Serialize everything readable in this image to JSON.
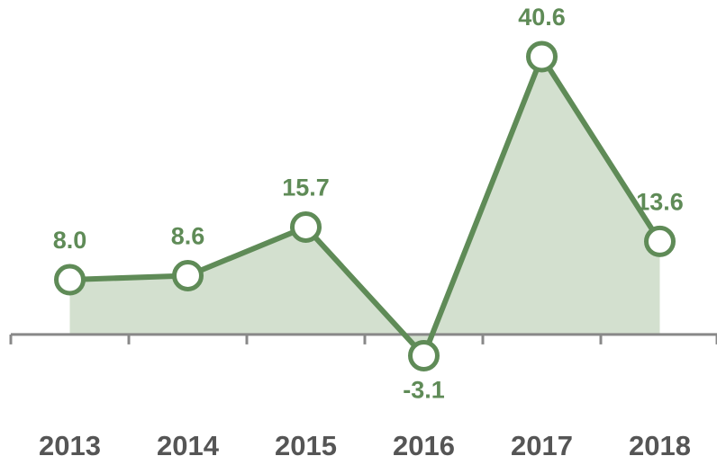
{
  "chart_data": {
    "type": "line",
    "categories": [
      "2013",
      "2014",
      "2015",
      "2016",
      "2017",
      "2018"
    ],
    "values": [
      8.0,
      8.6,
      15.7,
      -3.1,
      40.6,
      13.6
    ],
    "value_labels": [
      "8.0",
      "8.6",
      "15.7",
      "-3.1",
      "40.6",
      "13.6"
    ],
    "color": "#5f8b57",
    "fill": "#d3e0cf",
    "ylim": [
      -10,
      45
    ]
  }
}
